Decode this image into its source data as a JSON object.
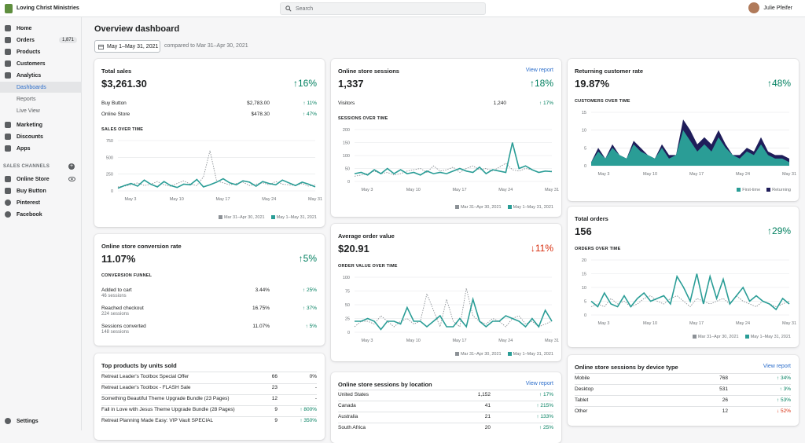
{
  "topbar": {
    "store": "Loving Christ Ministries",
    "search_placeholder": "Search",
    "user": "Julie Pfeifer"
  },
  "sidebar": {
    "items": [
      {
        "label": "Home"
      },
      {
        "label": "Orders",
        "badge": "1,871"
      },
      {
        "label": "Products"
      },
      {
        "label": "Customers"
      },
      {
        "label": "Analytics"
      },
      {
        "label": "Dashboards"
      },
      {
        "label": "Reports"
      },
      {
        "label": "Live View"
      },
      {
        "label": "Marketing"
      },
      {
        "label": "Discounts"
      },
      {
        "label": "Apps"
      }
    ],
    "channels_title": "SALES CHANNELS",
    "channels": [
      {
        "label": "Online Store"
      },
      {
        "label": "Buy Button"
      },
      {
        "label": "Pinterest"
      },
      {
        "label": "Facebook"
      }
    ],
    "settings": "Settings"
  },
  "header": {
    "title": "Overview dashboard",
    "date_range": "May 1–May 31, 2021",
    "compare": "compared to Mar 31–Apr 30, 2021"
  },
  "legend": {
    "prev": "Mar 31–Apr 30, 2021",
    "curr": "May 1–May 31, 2021",
    "first": "First-time",
    "ret": "Returning"
  },
  "colors": {
    "teal": "#2a9d96",
    "navy": "#1f1d5a",
    "dotted": "#8c9196"
  },
  "total_sales": {
    "title": "Total sales",
    "value": "$3,261.30",
    "pct": "16%",
    "rows": [
      {
        "a": "Buy Button",
        "b": "$2,783.00",
        "c": "11%"
      },
      {
        "a": "Online Store",
        "b": "$478.30",
        "c": "47%"
      }
    ],
    "chart_label": "SALES OVER TIME"
  },
  "sessions": {
    "title": "Online store sessions",
    "link": "View report",
    "value": "1,337",
    "pct": "18%",
    "visitors": {
      "a": "Visitors",
      "b": "1,240",
      "c": "17%"
    },
    "chart_label": "SESSIONS OVER TIME"
  },
  "returning": {
    "title": "Returning customer rate",
    "value": "19.87%",
    "pct": "48%",
    "chart_label": "CUSTOMERS OVER TIME"
  },
  "conversion": {
    "title": "Online store conversion rate",
    "value": "11.07%",
    "pct": "5%",
    "funnel_label": "CONVERSION FUNNEL",
    "rows": [
      {
        "a": "Added to cart",
        "s": "46 sessions",
        "b": "3.44%",
        "c": "25%"
      },
      {
        "a": "Reached checkout",
        "s": "224 sessions",
        "b": "16.75%",
        "c": "37%"
      },
      {
        "a": "Sessions converted",
        "s": "148 sessions",
        "b": "11.07%",
        "c": "5%"
      }
    ]
  },
  "aov": {
    "title": "Average order value",
    "value": "$20.91",
    "pct": "11%",
    "chart_label": "ORDER VALUE OVER TIME"
  },
  "orders": {
    "title": "Total orders",
    "value": "156",
    "pct": "29%",
    "chart_label": "ORDERS OVER TIME"
  },
  "top_products": {
    "title": "Top products by units sold",
    "rows": [
      {
        "a": "Retreat Leader's Toolbox Special Offer",
        "b": "66",
        "c": "0%"
      },
      {
        "a": "Retreat Leader's Toolbox - FLASH Sale",
        "b": "23",
        "c": "-"
      },
      {
        "a": "Something Beautiful Theme Upgrade Bundle (23 Pages)",
        "b": "12",
        "c": "-"
      },
      {
        "a": "Fall in Love with Jesus Theme Upgrade Bundle (28 Pages)",
        "b": "9",
        "c": "800%"
      },
      {
        "a": "Retreat Planning Made Easy: VIP Vault SPECIAL",
        "b": "9",
        "c": "350%"
      }
    ]
  },
  "location": {
    "title": "Online store sessions by location",
    "link": "View report",
    "rows": [
      {
        "a": "United States",
        "b": "1,152",
        "c": "17%"
      },
      {
        "a": "Canada",
        "b": "41",
        "c": "215%"
      },
      {
        "a": "Australia",
        "b": "21",
        "c": "133%"
      },
      {
        "a": "South Africa",
        "b": "20",
        "c": "25%"
      }
    ]
  },
  "device": {
    "title": "Online store sessions by device type",
    "link": "View report",
    "rows": [
      {
        "a": "Mobile",
        "b": "768",
        "c": "34%",
        "dir": "up"
      },
      {
        "a": "Desktop",
        "b": "531",
        "c": "3%",
        "dir": "up"
      },
      {
        "a": "Tablet",
        "b": "26",
        "c": "53%",
        "dir": "up"
      },
      {
        "a": "Other",
        "b": "12",
        "c": "52%",
        "dir": "down"
      }
    ]
  },
  "chart_data": [
    {
      "type": "line",
      "title": "SALES OVER TIME",
      "x_ticks": [
        "May 3",
        "May 10",
        "May 17",
        "May 24",
        "May 31"
      ],
      "y_ticks": [
        "0",
        "250",
        "500",
        "750"
      ],
      "ylim": [
        0,
        750
      ],
      "series": [
        {
          "name": "May 1–May 31, 2021",
          "values": [
            40,
            80,
            110,
            70,
            160,
            100,
            60,
            140,
            80,
            50,
            100,
            90,
            170,
            60,
            90,
            130,
            180,
            120,
            90,
            150,
            130,
            70,
            140,
            110,
            90,
            160,
            120,
            80,
            130,
            100,
            60
          ]
        },
        {
          "name": "Mar 31–Apr 30, 2021",
          "values": [
            60,
            70,
            90,
            120,
            80,
            100,
            140,
            90,
            70,
            110,
            150,
            100,
            80,
            210,
            600,
            150,
            120,
            90,
            110,
            130,
            80,
            100,
            120,
            90,
            140,
            100,
            90,
            80,
            110,
            70,
            90
          ]
        }
      ]
    },
    {
      "type": "line",
      "title": "SESSIONS OVER TIME",
      "x_ticks": [
        "May 3",
        "May 10",
        "May 17",
        "May 24",
        "May 31"
      ],
      "y_ticks": [
        "0",
        "50",
        "100",
        "150",
        "200"
      ],
      "ylim": [
        0,
        200
      ],
      "series": [
        {
          "name": "May 1–May 31, 2021",
          "values": [
            30,
            35,
            25,
            45,
            30,
            50,
            30,
            45,
            30,
            35,
            25,
            40,
            30,
            35,
            30,
            40,
            50,
            40,
            35,
            55,
            30,
            45,
            40,
            35,
            150,
            50,
            60,
            45,
            35,
            40,
            38
          ]
        },
        {
          "name": "Mar 31–Apr 30, 2021",
          "values": [
            20,
            25,
            30,
            40,
            30,
            35,
            25,
            30,
            40,
            45,
            50,
            35,
            60,
            40,
            45,
            55,
            35,
            50,
            60,
            45,
            50,
            40,
            55,
            70,
            45,
            40,
            50,
            45,
            35,
            40,
            40
          ]
        }
      ]
    },
    {
      "type": "area",
      "title": "CUSTOMERS OVER TIME",
      "x_ticks": [
        "May 3",
        "May 10",
        "May 17",
        "May 24",
        "May 31"
      ],
      "y_ticks": [
        "0",
        "5",
        "10",
        "15"
      ],
      "ylim": [
        0,
        15
      ],
      "series": [
        {
          "name": "First-time",
          "values": [
            1,
            4,
            2,
            5,
            3,
            2,
            6,
            4,
            3,
            2,
            5,
            2,
            3,
            10,
            7,
            4,
            6,
            4,
            8,
            5,
            3,
            2,
            4,
            3,
            6,
            3,
            2,
            2,
            1
          ]
        },
        {
          "name": "Returning",
          "values": [
            1,
            5,
            2,
            6,
            3,
            2,
            7,
            5,
            3,
            2,
            6,
            3,
            3,
            13,
            10,
            6,
            8,
            6,
            10,
            6,
            3,
            3,
            5,
            4,
            8,
            4,
            3,
            3,
            2
          ]
        }
      ]
    },
    {
      "type": "line",
      "title": "ORDER VALUE OVER TIME",
      "x_ticks": [
        "May 3",
        "May 10",
        "May 17",
        "May 24",
        "May 31"
      ],
      "y_ticks": [
        "0",
        "25",
        "50",
        "75",
        "100"
      ],
      "ylim": [
        0,
        100
      ],
      "series": [
        {
          "name": "May 1–May 31, 2021",
          "values": [
            20,
            20,
            25,
            20,
            5,
            20,
            20,
            15,
            45,
            20,
            20,
            10,
            20,
            30,
            10,
            10,
            25,
            10,
            60,
            20,
            10,
            20,
            20,
            30,
            25,
            20,
            10,
            25,
            10,
            40,
            20
          ]
        },
        {
          "name": "Mar 31–Apr 30, 2021",
          "values": [
            10,
            20,
            20,
            15,
            30,
            20,
            10,
            20,
            25,
            15,
            20,
            70,
            40,
            10,
            60,
            20,
            10,
            80,
            30,
            20,
            15,
            25,
            20,
            10,
            25,
            30,
            15,
            20,
            10,
            15,
            20
          ]
        }
      ]
    },
    {
      "type": "line",
      "title": "ORDERS OVER TIME",
      "x_ticks": [
        "May 3",
        "May 10",
        "May 17",
        "May 24",
        "May 31"
      ],
      "y_ticks": [
        "0",
        "5",
        "10",
        "15",
        "20"
      ],
      "ylim": [
        0,
        20
      ],
      "series": [
        {
          "name": "May 1–May 31, 2021",
          "values": [
            5,
            3,
            8,
            4,
            3,
            7,
            3,
            6,
            8,
            5,
            6,
            7,
            4,
            14,
            10,
            5,
            15,
            4,
            14,
            6,
            13,
            4,
            7,
            10,
            5,
            7,
            5,
            4,
            2,
            6,
            4
          ]
        },
        {
          "name": "Mar 31–Apr 30, 2021",
          "values": [
            3,
            4,
            3,
            6,
            4,
            5,
            3,
            4,
            6,
            7,
            5,
            4,
            6,
            7,
            5,
            3,
            6,
            5,
            4,
            5,
            6,
            4,
            7,
            5,
            4,
            3,
            5,
            4,
            3,
            4,
            5
          ]
        }
      ]
    }
  ]
}
